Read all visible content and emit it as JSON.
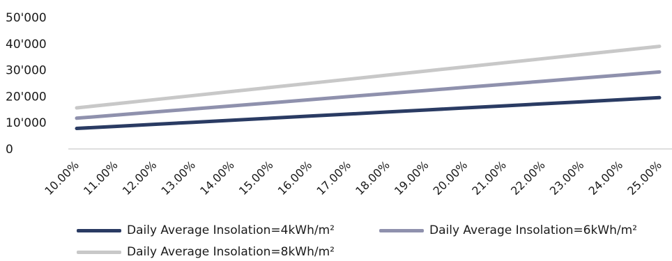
{
  "chart_data": {
    "type": "line",
    "x": [
      "10.00%",
      "11.00%",
      "12.00%",
      "13.00%",
      "14.00%",
      "15.00%",
      "16.00%",
      "17.00%",
      "18.00%",
      "19.00%",
      "20.00%",
      "21.00%",
      "22.00%",
      "23.00%",
      "24.00%",
      "25.00%"
    ],
    "yticks": [
      "0",
      "10'000",
      "20'000",
      "30'000",
      "40'000",
      "50'000"
    ],
    "ylim": [
      0,
      50000
    ],
    "grid": false,
    "legend_position": "bottom",
    "series": [
      {
        "name": "Daily Average Insolation=4kWh/m²",
        "color": "#2a3b63",
        "values": [
          7800,
          8580,
          9360,
          10140,
          10920,
          11700,
          12480,
          13260,
          14040,
          14820,
          15600,
          16380,
          17160,
          17940,
          18720,
          19500
        ]
      },
      {
        "name": "Daily Average Insolation=6kWh/m²",
        "color": "#8f91ad",
        "values": [
          11700,
          12870,
          14040,
          15210,
          16380,
          17550,
          18720,
          19890,
          21060,
          22230,
          23400,
          24570,
          25740,
          26910,
          28080,
          29250
        ]
      },
      {
        "name": "Daily Average Insolation=8kWh/m²",
        "color": "#c8c8c8",
        "values": [
          15600,
          17160,
          18720,
          20280,
          21840,
          23400,
          24960,
          26520,
          28080,
          29640,
          31200,
          32760,
          34320,
          35880,
          37440,
          39000
        ]
      }
    ]
  }
}
